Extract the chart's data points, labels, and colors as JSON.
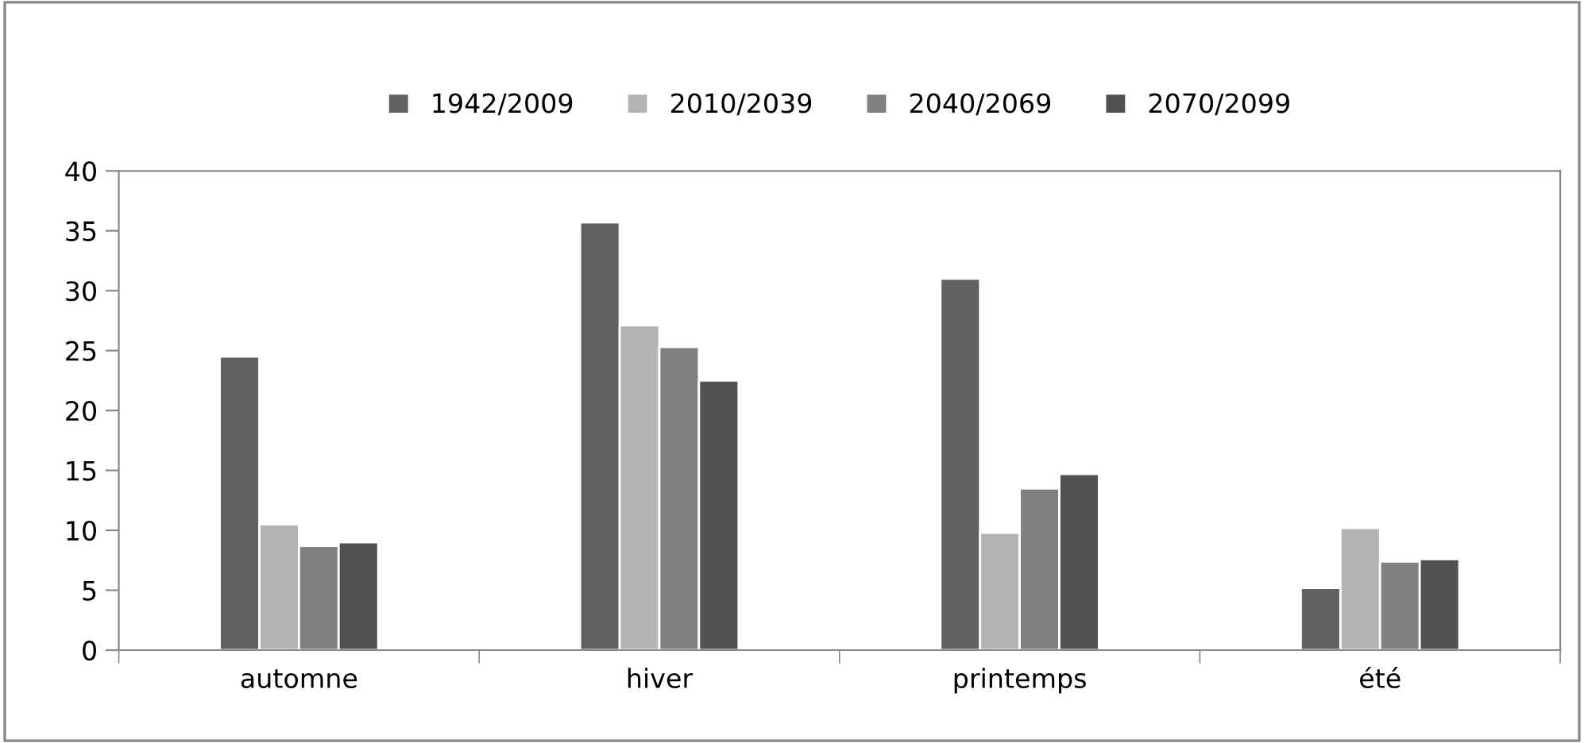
{
  "chart_data": {
    "type": "bar",
    "categories": [
      "automne",
      "hiver",
      "printemps",
      "été"
    ],
    "series": [
      {
        "name": "1942/2009",
        "color": "#616161",
        "values": [
          24.5,
          35.7,
          31,
          5.2
        ]
      },
      {
        "name": "2010/2039",
        "color": "#b3b3b3",
        "values": [
          10.5,
          27.1,
          9.8,
          10.2
        ]
      },
      {
        "name": "2040/2069",
        "color": "#808080",
        "values": [
          8.7,
          25.3,
          13.5,
          7.4
        ]
      },
      {
        "name": "2070/2099",
        "color": "#515151",
        "values": [
          9.0,
          22.5,
          14.7,
          7.6
        ]
      }
    ],
    "ylim": [
      0,
      40
    ],
    "yticks": [
      0,
      5,
      10,
      15,
      20,
      25,
      30,
      35,
      40
    ],
    "grid": false,
    "legend": "top"
  }
}
